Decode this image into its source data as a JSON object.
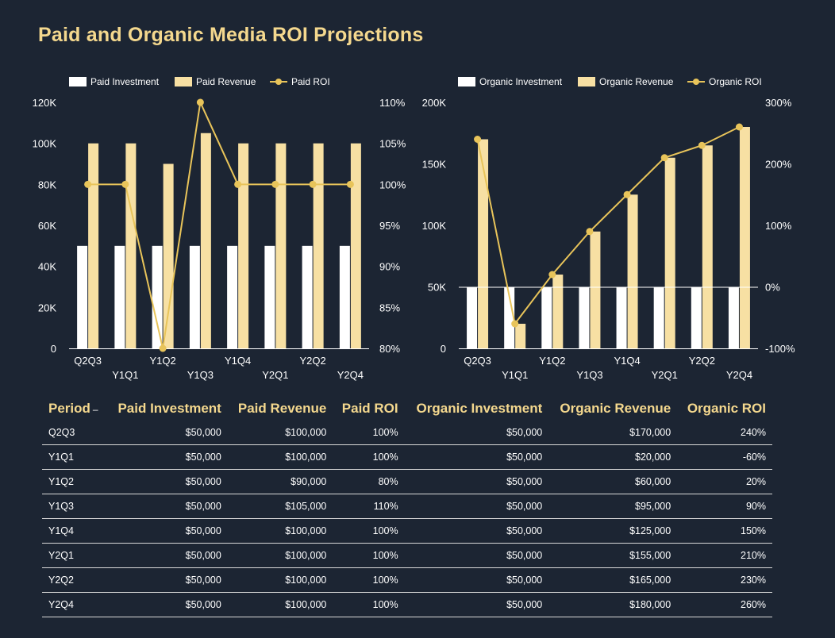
{
  "title": "Paid and Organic Media ROI Projections",
  "colors": {
    "investment": "#ffffff",
    "revenue": "#f7e0a3",
    "roi": "#e8c45a",
    "title": "#f4d88e",
    "background": "#1c2533"
  },
  "chart_data": [
    {
      "type": "bar",
      "categories": [
        "Q2Q3",
        "Y1Q1",
        "Y1Q2",
        "Y1Q3",
        "Y1Q4",
        "Y2Q1",
        "Y2Q2",
        "Y2Q4"
      ],
      "series": [
        {
          "name": "Paid Investment",
          "type": "bar",
          "axis": "left",
          "values": [
            50000,
            50000,
            50000,
            50000,
            50000,
            50000,
            50000,
            50000
          ]
        },
        {
          "name": "Paid Revenue",
          "type": "bar",
          "axis": "left",
          "values": [
            100000,
            100000,
            90000,
            105000,
            100000,
            100000,
            100000,
            100000
          ]
        },
        {
          "name": "Paid ROI",
          "type": "line",
          "axis": "right",
          "values": [
            100,
            100,
            80,
            110,
            100,
            100,
            100,
            100
          ]
        }
      ],
      "left_axis": {
        "ylim": [
          0,
          120000
        ],
        "ticks": [
          "0",
          "20K",
          "40K",
          "60K",
          "80K",
          "100K",
          "120K"
        ]
      },
      "right_axis": {
        "ylim": [
          80,
          110
        ],
        "ticks": [
          "80%",
          "85%",
          "90%",
          "95%",
          "100%",
          "105%",
          "110%"
        ]
      },
      "legend": "top"
    },
    {
      "type": "bar",
      "categories": [
        "Q2Q3",
        "Y1Q1",
        "Y1Q2",
        "Y1Q3",
        "Y1Q4",
        "Y2Q1",
        "Y2Q2",
        "Y2Q4"
      ],
      "series": [
        {
          "name": "Organic Investment",
          "type": "bar",
          "axis": "left",
          "values": [
            50000,
            50000,
            50000,
            50000,
            50000,
            50000,
            50000,
            50000
          ]
        },
        {
          "name": "Organic Revenue",
          "type": "bar",
          "axis": "left",
          "values": [
            170000,
            20000,
            60000,
            95000,
            125000,
            155000,
            165000,
            180000
          ]
        },
        {
          "name": "Organic ROI",
          "type": "line",
          "axis": "right",
          "values": [
            240,
            -60,
            20,
            90,
            150,
            210,
            230,
            260
          ]
        }
      ],
      "left_axis": {
        "ylim": [
          0,
          200000
        ],
        "ticks": [
          "0",
          "50K",
          "100K",
          "150K",
          "200K"
        ]
      },
      "right_axis": {
        "ylim": [
          -100,
          300
        ],
        "ticks": [
          "-100%",
          "0%",
          "100%",
          "200%",
          "300%"
        ]
      },
      "legend": "top"
    }
  ],
  "table": {
    "headers": [
      "Period",
      "Paid Investment",
      "Paid Revenue",
      "Paid ROI",
      "Organic Investment",
      "Organic Revenue",
      "Organic ROI"
    ],
    "sort_indicator": "–",
    "rows": [
      [
        "Q2Q3",
        "$50,000",
        "$100,000",
        "100%",
        "$50,000",
        "$170,000",
        "240%"
      ],
      [
        "Y1Q1",
        "$50,000",
        "$100,000",
        "100%",
        "$50,000",
        "$20,000",
        "-60%"
      ],
      [
        "Y1Q2",
        "$50,000",
        "$90,000",
        "80%",
        "$50,000",
        "$60,000",
        "20%"
      ],
      [
        "Y1Q3",
        "$50,000",
        "$105,000",
        "110%",
        "$50,000",
        "$95,000",
        "90%"
      ],
      [
        "Y1Q4",
        "$50,000",
        "$100,000",
        "100%",
        "$50,000",
        "$125,000",
        "150%"
      ],
      [
        "Y2Q1",
        "$50,000",
        "$100,000",
        "100%",
        "$50,000",
        "$155,000",
        "210%"
      ],
      [
        "Y2Q2",
        "$50,000",
        "$100,000",
        "100%",
        "$50,000",
        "$165,000",
        "230%"
      ],
      [
        "Y2Q4",
        "$50,000",
        "$100,000",
        "100%",
        "$50,000",
        "$180,000",
        "260%"
      ]
    ]
  }
}
